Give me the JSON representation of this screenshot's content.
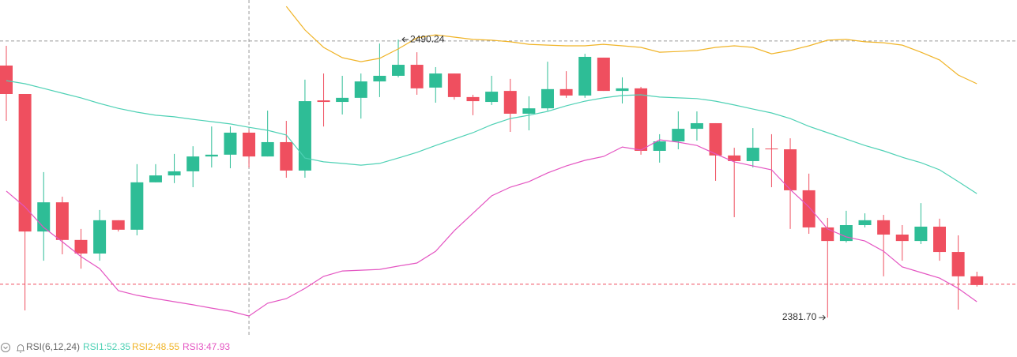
{
  "chart_data": {
    "type": "candlestick",
    "ylim": [
      2366.3,
      2505.7
    ],
    "up_color": "#2ebd96",
    "down_color": "#ef4f5f",
    "open": [
      2480.1,
      2469.0,
      2415.3,
      2426.7,
      2412.0,
      2406.7,
      2419.7,
      2416.0,
      2434.5,
      2437.2,
      2438.8,
      2444.6,
      2445.3,
      2453.9,
      2444.6,
      2450.2,
      2439.1,
      2466.5,
      2465.9,
      2467.5,
      2473.9,
      2476.1,
      2480.4,
      2471.5,
      2477.0,
      2467.8,
      2465.9,
      2470.2,
      2461.3,
      2463.4,
      2470.9,
      2468.4,
      2483.2,
      2470.2,
      2471.2,
      2446.8,
      2450.5,
      2455.4,
      2457.6,
      2445.0,
      2442.8,
      2447.7,
      2447.4,
      2431.4,
      2416.9,
      2411.6,
      2417.8,
      2419.7,
      2414.1,
      2411.6,
      2417.2,
      2407.3,
      2397.8
    ],
    "high": [
      2487.8,
      2469.0,
      2438.5,
      2428.9,
      2416.3,
      2423.7,
      2419.7,
      2441.6,
      2441.6,
      2445.6,
      2448.6,
      2456.3,
      2456.3,
      2454.8,
      2462.5,
      2458.5,
      2474.6,
      2477.0,
      2476.1,
      2477.0,
      2488.7,
      2490.24,
      2485.3,
      2479.5,
      2477.0,
      2468.7,
      2476.1,
      2474.9,
      2468.1,
      2481.6,
      2477.9,
      2484.7,
      2483.2,
      2475.5,
      2471.8,
      2453.3,
      2462.2,
      2462.2,
      2457.6,
      2448.0,
      2455.7,
      2453.3,
      2451.7,
      2437.9,
      2420.6,
      2423.4,
      2422.4,
      2421.8,
      2417.8,
      2426.4,
      2420.3,
      2413.8,
      2399.6
    ],
    "low": [
      2458.5,
      2384.5,
      2403.9,
      2406.4,
      2400.8,
      2403.9,
      2415.3,
      2413.8,
      2434.5,
      2434.2,
      2432.6,
      2440.3,
      2440.0,
      2440.3,
      2444.6,
      2436.3,
      2436.3,
      2456.3,
      2461.0,
      2459.4,
      2467.8,
      2475.5,
      2468.7,
      2465.6,
      2466.8,
      2460.7,
      2464.7,
      2454.2,
      2454.8,
      2462.5,
      2467.5,
      2467.5,
      2470.2,
      2465.3,
      2445.3,
      2442.2,
      2447.4,
      2450.8,
      2435.1,
      2420.9,
      2440.3,
      2432.6,
      2416.3,
      2414.4,
      2381.7,
      2411.0,
      2416.9,
      2397.8,
      2403.9,
      2410.4,
      2403.9,
      2384.8,
      2393.8
    ],
    "close": [
      2469.0,
      2415.3,
      2426.7,
      2412.0,
      2406.7,
      2419.7,
      2416.0,
      2434.5,
      2437.2,
      2438.8,
      2444.6,
      2445.3,
      2453.9,
      2444.6,
      2450.2,
      2439.1,
      2466.2,
      2465.9,
      2467.5,
      2473.9,
      2476.1,
      2480.4,
      2471.2,
      2477.0,
      2467.8,
      2466.2,
      2469.9,
      2461.3,
      2463.4,
      2470.9,
      2468.4,
      2483.5,
      2470.2,
      2471.2,
      2446.8,
      2450.5,
      2455.4,
      2457.6,
      2445.0,
      2442.8,
      2448.0,
      2447.4,
      2431.4,
      2416.9,
      2411.6,
      2417.8,
      2419.7,
      2414.1,
      2411.6,
      2417.2,
      2407.3,
      2397.8,
      2394.4
    ],
    "legend_title": "RSI(6,12,24)",
    "series": [
      {
        "name": "RSI1:52.35",
        "color": "#4fd1b5",
        "values": [
          2474.2,
          2473.0,
          2471.2,
          2469.3,
          2467.5,
          2465.3,
          2463.4,
          2461.9,
          2460.7,
          2460.1,
          2459.1,
          2458.2,
          2457.3,
          2456.0,
          2454.8,
          2453.0,
          2444.0,
          2442.5,
          2441.9,
          2441.2,
          2441.9,
          2444.0,
          2446.2,
          2448.9,
          2451.4,
          2453.9,
          2457.0,
          2459.4,
          2460.7,
          2462.2,
          2464.4,
          2466.2,
          2467.5,
          2468.4,
          2468.7,
          2467.8,
          2467.5,
          2467.2,
          2466.2,
          2464.7,
          2463.1,
          2461.6,
          2459.4,
          2456.4,
          2453.9,
          2451.4,
          2448.9,
          2446.8,
          2444.3,
          2442.2,
          2439.4,
          2434.8,
          2430.1
        ]
      },
      {
        "name": "RSI2:48.55",
        "color": "#f0b428",
        "values": [
          null,
          null,
          null,
          null,
          null,
          null,
          null,
          null,
          null,
          null,
          null,
          null,
          null,
          null,
          null,
          2503.2,
          2494.0,
          2487.2,
          2483.2,
          2481.6,
          2482.9,
          2486.6,
          2490.9,
          2492.1,
          2491.2,
          2490.3,
          2490.0,
          2489.4,
          2488.4,
          2488.1,
          2487.8,
          2487.8,
          2488.4,
          2487.8,
          2487.2,
          2485.3,
          2485.6,
          2486.0,
          2487.2,
          2487.8,
          2487.2,
          2484.7,
          2486.0,
          2487.8,
          2490.0,
          2490.3,
          2489.4,
          2489.0,
          2488.1,
          2485.3,
          2482.3,
          2476.4,
          2473.0
        ]
      },
      {
        "name": "RSI3:47.93",
        "color": "#e455c2",
        "values": [
          2431.1,
          2424.9,
          2416.9,
          2411.3,
          2405.5,
          2400.8,
          2392.2,
          2390.4,
          2389.1,
          2387.9,
          2386.7,
          2385.4,
          2384.2,
          2382.3,
          2387.3,
          2389.1,
          2393.1,
          2397.8,
          2399.9,
          2400.2,
          2400.5,
          2401.8,
          2403.0,
          2407.6,
          2415.6,
          2422.4,
          2429.2,
          2432.6,
          2434.8,
          2438.2,
          2440.9,
          2443.1,
          2444.6,
          2448.3,
          2447.1,
          2451.1,
          2450.2,
          2448.9,
          2445.6,
          2442.5,
          2440.9,
          2439.4,
          2431.7,
          2424.9,
          2416.3,
          2413.2,
          2411.6,
          2407.6,
          2401.5,
          2399.3,
          2397.1,
          2393.1,
          2387.9
        ]
      }
    ],
    "hlines": [
      {
        "value": 2489.7,
        "color": "#9a9a9a"
      },
      {
        "value": 2394.7,
        "color": "#ef4f5f"
      }
    ],
    "crosshair_index": 13,
    "annotations": [
      {
        "index": 21,
        "value": 2490.24,
        "side": "right"
      },
      {
        "index": 44,
        "value": {
          "value": 2381.7,
          "label": "2381.70"
        },
        "side": "left"
      }
    ]
  }
}
